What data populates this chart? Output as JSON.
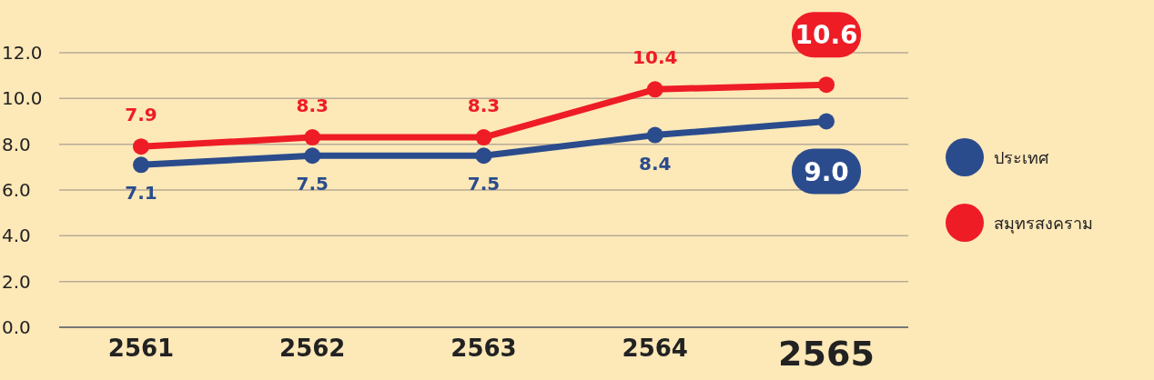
{
  "chart_data": {
    "type": "line",
    "categories": [
      "2561",
      "2562",
      "2563",
      "2564",
      "2565"
    ],
    "series": [
      {
        "name": "ประเทศ",
        "color": "#2b4c8c",
        "values": [
          7.1,
          7.5,
          7.5,
          8.4,
          9.0
        ],
        "value_labels": [
          "7.1",
          "7.5",
          "7.5",
          "8.4",
          "9.0"
        ]
      },
      {
        "name": "สมุทรสงคราม",
        "color": "#ee1c25",
        "values": [
          7.9,
          8.3,
          8.3,
          10.4,
          10.6
        ],
        "value_labels": [
          "7.9",
          "8.3",
          "8.3",
          "10.4",
          "10.6"
        ]
      }
    ],
    "ylim": [
      0,
      12
    ],
    "yticks": [
      {
        "value": 0,
        "label": "0.0"
      },
      {
        "value": 2,
        "label": "2.0"
      },
      {
        "value": 4,
        "label": "4.0"
      },
      {
        "value": 6,
        "label": "6.0"
      },
      {
        "value": 8,
        "label": "8.0"
      },
      {
        "value": 10,
        "label": "10.0"
      },
      {
        "value": 12,
        "label": "12.0"
      }
    ],
    "grid": "y",
    "legend": "right",
    "marker": "circle",
    "line_style": "solid"
  }
}
